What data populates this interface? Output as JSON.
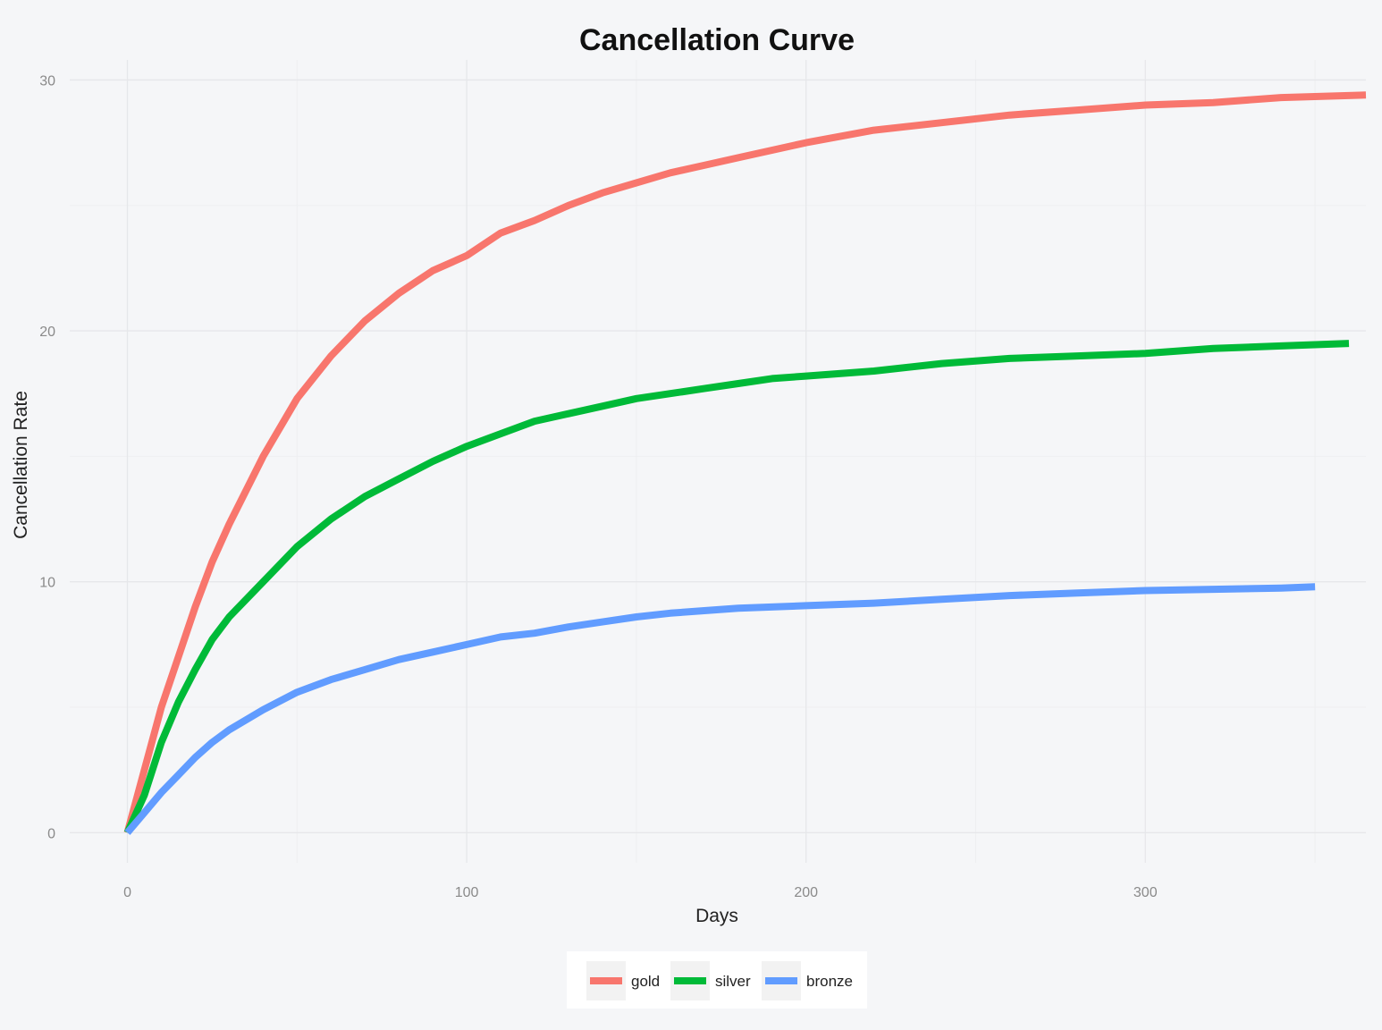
{
  "chart_data": {
    "type": "line",
    "title": "Cancellation Curve",
    "xlabel": "Days",
    "ylabel": "Cancellation Rate",
    "xlim": [
      -17,
      365
    ],
    "ylim": [
      -1.2,
      30.8
    ],
    "x_ticks": [
      0,
      100,
      200,
      300
    ],
    "x_tick_labels": [
      "0",
      "100",
      "200",
      "300"
    ],
    "y_ticks": [
      0,
      10,
      20,
      30
    ],
    "y_tick_labels": [
      "0",
      "10",
      "20",
      "30"
    ],
    "grid": true,
    "legend_position": "bottom",
    "series": [
      {
        "name": "gold",
        "color": "#f8766d",
        "x": [
          0,
          5,
          10,
          15,
          20,
          25,
          30,
          40,
          50,
          60,
          70,
          80,
          90,
          100,
          110,
          120,
          130,
          140,
          150,
          160,
          170,
          180,
          190,
          200,
          220,
          240,
          260,
          280,
          300,
          320,
          340,
          365
        ],
        "y": [
          0,
          2.5,
          5.0,
          7.0,
          9.0,
          10.8,
          12.3,
          15.0,
          17.3,
          19.0,
          20.4,
          21.5,
          22.4,
          23.0,
          23.9,
          24.4,
          25.0,
          25.5,
          25.9,
          26.3,
          26.6,
          26.9,
          27.2,
          27.5,
          28.0,
          28.3,
          28.6,
          28.8,
          29.0,
          29.1,
          29.3,
          29.4
        ]
      },
      {
        "name": "silver",
        "color": "#00ba38",
        "x": [
          0,
          5,
          10,
          15,
          20,
          25,
          30,
          40,
          50,
          60,
          70,
          80,
          90,
          100,
          110,
          120,
          130,
          140,
          150,
          160,
          170,
          180,
          190,
          200,
          220,
          240,
          260,
          280,
          300,
          320,
          340,
          360
        ],
        "y": [
          0,
          1.5,
          3.6,
          5.2,
          6.5,
          7.7,
          8.6,
          10.0,
          11.4,
          12.5,
          13.4,
          14.1,
          14.8,
          15.4,
          15.9,
          16.4,
          16.7,
          17.0,
          17.3,
          17.5,
          17.7,
          17.9,
          18.1,
          18.2,
          18.4,
          18.7,
          18.9,
          19.0,
          19.1,
          19.3,
          19.4,
          19.5
        ]
      },
      {
        "name": "bronze",
        "color": "#619cff",
        "x": [
          0,
          5,
          10,
          15,
          20,
          25,
          30,
          40,
          50,
          60,
          70,
          80,
          90,
          100,
          110,
          120,
          130,
          140,
          150,
          160,
          170,
          180,
          200,
          220,
          240,
          260,
          280,
          300,
          320,
          340,
          350
        ],
        "y": [
          0,
          0.8,
          1.6,
          2.3,
          3.0,
          3.6,
          4.1,
          4.9,
          5.6,
          6.1,
          6.5,
          6.9,
          7.2,
          7.5,
          7.8,
          7.95,
          8.2,
          8.4,
          8.6,
          8.75,
          8.85,
          8.95,
          9.05,
          9.15,
          9.3,
          9.45,
          9.55,
          9.65,
          9.7,
          9.75,
          9.8
        ]
      }
    ]
  }
}
